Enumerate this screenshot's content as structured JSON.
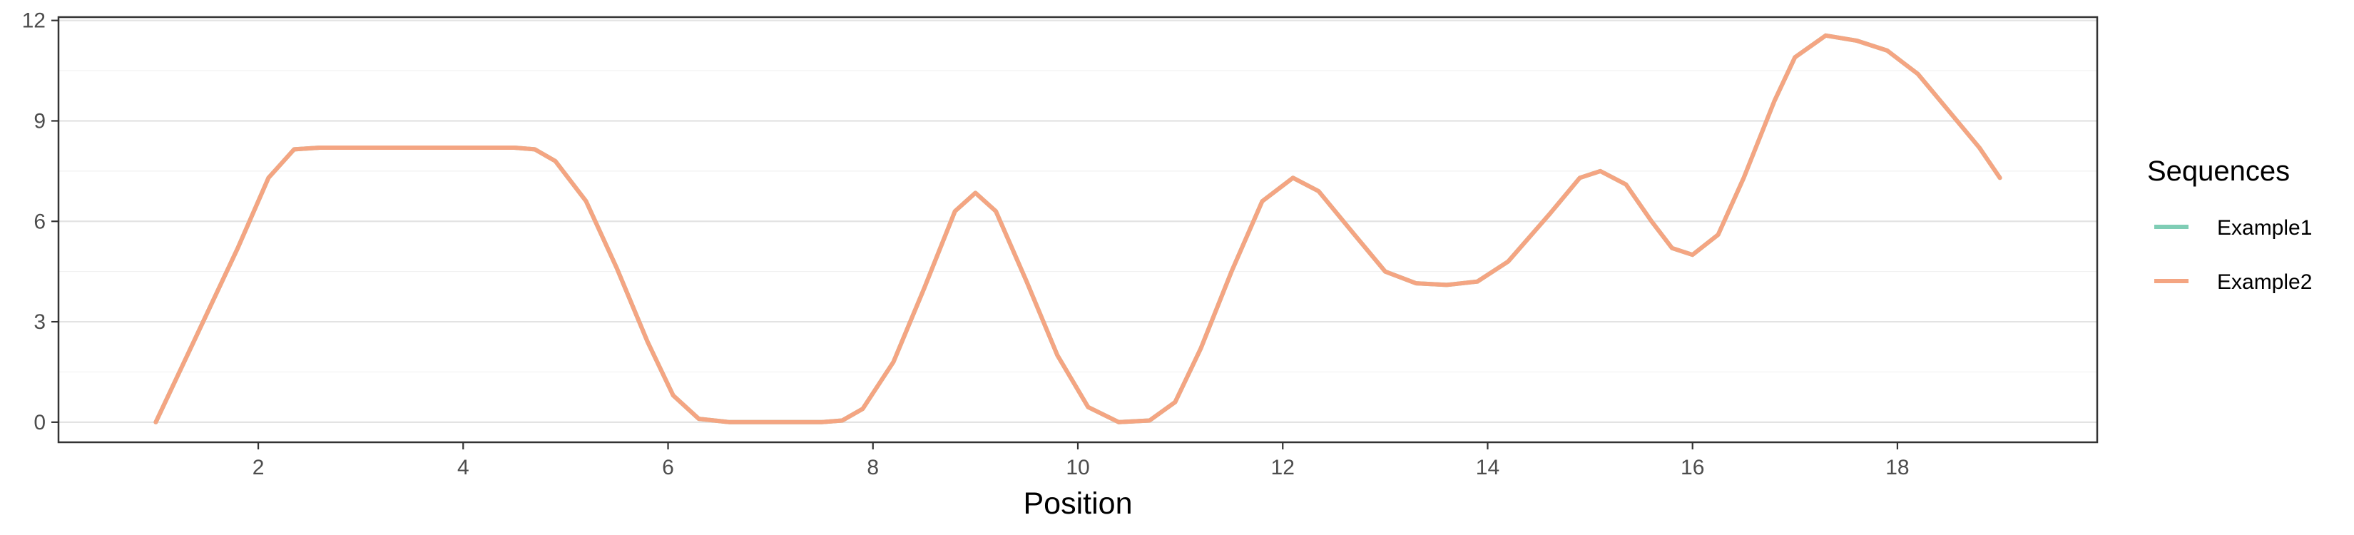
{
  "chart_data": {
    "type": "line",
    "title": "",
    "xlabel": "Position",
    "ylabel": "",
    "xlim": [
      0.05,
      19.95
    ],
    "ylim": [
      -0.6,
      12.1
    ],
    "x_ticks": [
      2,
      4,
      6,
      8,
      10,
      12,
      14,
      16,
      18
    ],
    "y_ticks": [
      0,
      3,
      6,
      9,
      12
    ],
    "x_tick_labels": [
      "2",
      "4",
      "6",
      "8",
      "10",
      "12",
      "14",
      "16",
      "18"
    ],
    "y_tick_labels": [
      "0",
      "3",
      "6",
      "9",
      "12"
    ],
    "grid": "horizontal major and minor",
    "legend": {
      "title": "Sequences",
      "placement": "right"
    },
    "series": [
      {
        "name": "Example1",
        "color": "#7fcdb5",
        "points": [
          [
            1,
            0
          ],
          [
            1.4,
            2.6
          ],
          [
            1.8,
            5.2
          ],
          [
            2.1,
            7.3
          ],
          [
            2.35,
            8.15
          ],
          [
            2.6,
            8.2
          ],
          [
            3,
            8.2
          ],
          [
            3.5,
            8.2
          ],
          [
            4,
            8.2
          ],
          [
            4.5,
            8.2
          ],
          [
            4.7,
            8.15
          ],
          [
            4.9,
            7.8
          ],
          [
            5.2,
            6.6
          ],
          [
            5.5,
            4.6
          ],
          [
            5.8,
            2.4
          ],
          [
            6.05,
            0.8
          ],
          [
            6.3,
            0.1
          ],
          [
            6.6,
            0
          ],
          [
            7,
            0
          ],
          [
            7.5,
            0
          ],
          [
            7.7,
            0.05
          ],
          [
            7.9,
            0.4
          ],
          [
            8.2,
            1.8
          ],
          [
            8.5,
            4
          ],
          [
            8.8,
            6.3
          ],
          [
            9,
            6.85
          ],
          [
            9.2,
            6.3
          ],
          [
            9.5,
            4.2
          ],
          [
            9.8,
            2
          ],
          [
            10.1,
            0.45
          ],
          [
            10.4,
            0
          ],
          [
            10.7,
            0.05
          ],
          [
            10.95,
            0.6
          ],
          [
            11.2,
            2.2
          ],
          [
            11.5,
            4.5
          ],
          [
            11.8,
            6.6
          ],
          [
            12.1,
            7.3
          ],
          [
            12.35,
            6.9
          ],
          [
            12.7,
            5.6
          ],
          [
            13,
            4.5
          ],
          [
            13.3,
            4.15
          ],
          [
            13.6,
            4.1
          ],
          [
            13.9,
            4.2
          ],
          [
            14.2,
            4.8
          ],
          [
            14.6,
            6.2
          ],
          [
            14.9,
            7.3
          ],
          [
            15.1,
            7.5
          ],
          [
            15.35,
            7.1
          ],
          [
            15.6,
            6
          ],
          [
            15.8,
            5.2
          ],
          [
            16,
            5
          ],
          [
            16.25,
            5.6
          ],
          [
            16.5,
            7.3
          ],
          [
            16.8,
            9.6
          ],
          [
            17,
            10.9
          ],
          [
            17.3,
            11.55
          ],
          [
            17.6,
            11.4
          ],
          [
            17.9,
            11.1
          ],
          [
            18.2,
            10.4
          ],
          [
            18.5,
            9.3
          ],
          [
            18.8,
            8.2
          ],
          [
            19,
            7.3
          ]
        ]
      },
      {
        "name": "Example2",
        "color": "#f4a582",
        "points": [
          [
            1,
            0
          ],
          [
            1.4,
            2.6
          ],
          [
            1.8,
            5.2
          ],
          [
            2.1,
            7.3
          ],
          [
            2.35,
            8.15
          ],
          [
            2.6,
            8.2
          ],
          [
            3,
            8.2
          ],
          [
            3.5,
            8.2
          ],
          [
            4,
            8.2
          ],
          [
            4.5,
            8.2
          ],
          [
            4.7,
            8.15
          ],
          [
            4.9,
            7.8
          ],
          [
            5.2,
            6.6
          ],
          [
            5.5,
            4.6
          ],
          [
            5.8,
            2.4
          ],
          [
            6.05,
            0.8
          ],
          [
            6.3,
            0.1
          ],
          [
            6.6,
            0
          ],
          [
            7,
            0
          ],
          [
            7.5,
            0
          ],
          [
            7.7,
            0.05
          ],
          [
            7.9,
            0.4
          ],
          [
            8.2,
            1.8
          ],
          [
            8.5,
            4
          ],
          [
            8.8,
            6.3
          ],
          [
            9,
            6.85
          ],
          [
            9.2,
            6.3
          ],
          [
            9.5,
            4.2
          ],
          [
            9.8,
            2
          ],
          [
            10.1,
            0.45
          ],
          [
            10.4,
            0
          ],
          [
            10.7,
            0.05
          ],
          [
            10.95,
            0.6
          ],
          [
            11.2,
            2.2
          ],
          [
            11.5,
            4.5
          ],
          [
            11.8,
            6.6
          ],
          [
            12.1,
            7.3
          ],
          [
            12.35,
            6.9
          ],
          [
            12.7,
            5.6
          ],
          [
            13,
            4.5
          ],
          [
            13.3,
            4.15
          ],
          [
            13.6,
            4.1
          ],
          [
            13.9,
            4.2
          ],
          [
            14.2,
            4.8
          ],
          [
            14.6,
            6.2
          ],
          [
            14.9,
            7.3
          ],
          [
            15.1,
            7.5
          ],
          [
            15.35,
            7.1
          ],
          [
            15.6,
            6
          ],
          [
            15.8,
            5.2
          ],
          [
            16,
            5
          ],
          [
            16.25,
            5.6
          ],
          [
            16.5,
            7.3
          ],
          [
            16.8,
            9.6
          ],
          [
            17,
            10.9
          ],
          [
            17.3,
            11.55
          ],
          [
            17.6,
            11.4
          ],
          [
            17.9,
            11.1
          ],
          [
            18.2,
            10.4
          ],
          [
            18.5,
            9.3
          ],
          [
            18.8,
            8.2
          ],
          [
            19,
            7.3
          ]
        ]
      }
    ]
  }
}
